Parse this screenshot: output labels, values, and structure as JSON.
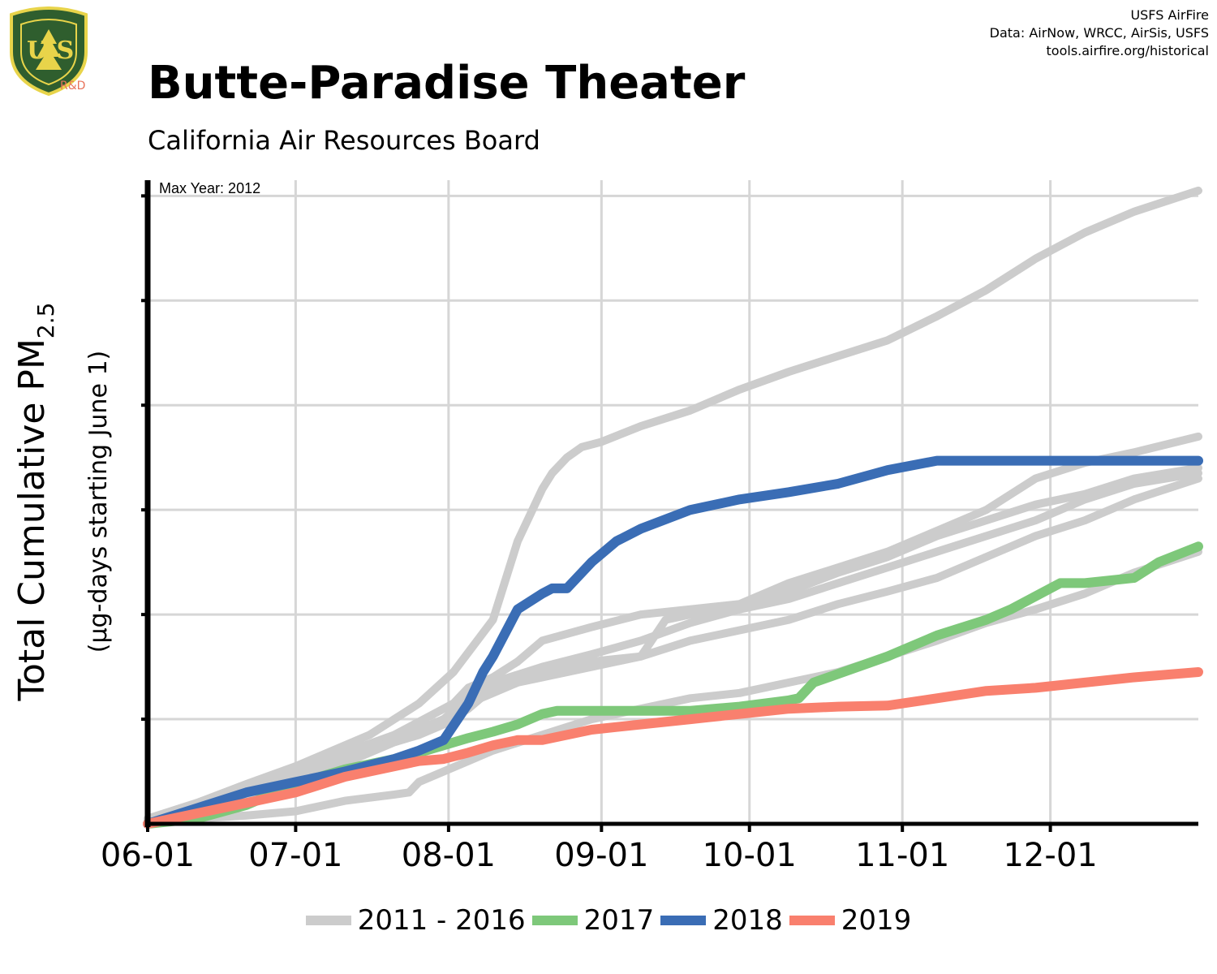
{
  "header": {
    "title": "Butte-Paradise Theater",
    "subtitle": "California Air Resources Board",
    "credits": [
      "USFS AirFire",
      "Data: AirNow, WRCC, AirSis, USFS",
      "tools.airfire.org/historical"
    ],
    "logo_text": "U S",
    "logo_rd": "R&D"
  },
  "chart_data": {
    "type": "line",
    "title": "Butte-Paradise Theater",
    "subtitle": "California Air Resources Board",
    "annotation": "Max Year: 2012",
    "ylabel": "Total Cumulative PM",
    "ylabel_sub": "2.5",
    "ylabel_secondary": "(µg-days starting June 1)",
    "x_ticks": [
      "06-01",
      "07-01",
      "08-01",
      "09-01",
      "10-01",
      "11-01",
      "12-01"
    ],
    "x_tick_day": [
      0,
      30,
      61,
      92,
      122,
      153,
      183
    ],
    "xlim": [
      0,
      213
    ],
    "ylim": [
      0,
      6.15
    ],
    "y_ticks": [
      1,
      2,
      3,
      4,
      5,
      6
    ],
    "grid": true,
    "legend_position": "bottom",
    "colors": {
      "2011 - 2016": "#cccccc",
      "2017": "#7ec87a",
      "2018": "#3a6db5",
      "2019": "#f9806e"
    },
    "legend": [
      {
        "label": "2011 - 2016",
        "color": "#cccccc"
      },
      {
        "label": "2017",
        "color": "#7ec87a"
      },
      {
        "label": "2018",
        "color": "#3a6db5"
      },
      {
        "label": "2019",
        "color": "#f9806e"
      }
    ],
    "series": [
      {
        "name": "2011 - 2016",
        "color": "#cccccc",
        "x": [
          0,
          10,
          20,
          30,
          45,
          55,
          62,
          70,
          75,
          80,
          82,
          85,
          88,
          92,
          100,
          110,
          120,
          130,
          140,
          150,
          160,
          170,
          180,
          190,
          200,
          213
        ],
        "y": [
          0.05,
          0.2,
          0.38,
          0.55,
          0.85,
          1.15,
          1.45,
          1.95,
          2.7,
          3.2,
          3.35,
          3.5,
          3.6,
          3.65,
          3.8,
          3.95,
          4.15,
          4.32,
          4.47,
          4.62,
          4.85,
          5.1,
          5.4,
          5.65,
          5.85,
          6.05
        ]
      },
      {
        "name": "2011 - 2016",
        "color": "#cccccc",
        "x": [
          0,
          10,
          20,
          30,
          40,
          50,
          60,
          62,
          65,
          70,
          75,
          80,
          90,
          100,
          110,
          120,
          130,
          140,
          150,
          160,
          170,
          180,
          190,
          200,
          213
        ],
        "y": [
          0.03,
          0.15,
          0.3,
          0.5,
          0.68,
          0.85,
          1.1,
          1.15,
          1.3,
          1.4,
          1.55,
          1.75,
          1.88,
          2.0,
          2.05,
          2.1,
          2.3,
          2.45,
          2.6,
          2.8,
          3.0,
          3.3,
          3.45,
          3.55,
          3.7
        ]
      },
      {
        "name": "2011 - 2016",
        "color": "#cccccc",
        "x": [
          0,
          10,
          20,
          30,
          45,
          55,
          60,
          65,
          70,
          80,
          90,
          100,
          110,
          120,
          130,
          140,
          150,
          160,
          170,
          180,
          190,
          200,
          213
        ],
        "y": [
          0.02,
          0.12,
          0.28,
          0.46,
          0.7,
          0.9,
          1.0,
          1.2,
          1.35,
          1.5,
          1.62,
          1.75,
          1.92,
          2.05,
          2.22,
          2.4,
          2.55,
          2.75,
          2.9,
          3.05,
          3.15,
          3.3,
          3.4
        ]
      },
      {
        "name": "2011 - 2016",
        "color": "#cccccc",
        "x": [
          0,
          10,
          20,
          30,
          40,
          50,
          55,
          60,
          65,
          70,
          80,
          90,
          100,
          105,
          110,
          120,
          130,
          140,
          150,
          160,
          170,
          180,
          190,
          200,
          213
        ],
        "y": [
          0.02,
          0.1,
          0.22,
          0.4,
          0.58,
          0.78,
          0.85,
          0.95,
          1.1,
          1.3,
          1.45,
          1.55,
          1.6,
          1.95,
          2.0,
          2.05,
          2.15,
          2.3,
          2.45,
          2.6,
          2.75,
          2.9,
          3.1,
          3.25,
          3.35
        ]
      },
      {
        "name": "2011 - 2016",
        "color": "#cccccc",
        "x": [
          0,
          5,
          10,
          20,
          30,
          40,
          50,
          53,
          55,
          60,
          65,
          70,
          80,
          90,
          100,
          110,
          120,
          130,
          140,
          150,
          160,
          170,
          180,
          190,
          200,
          213
        ],
        "y": [
          0.01,
          0.03,
          0.05,
          0.08,
          0.12,
          0.22,
          0.28,
          0.3,
          0.4,
          0.5,
          0.6,
          0.7,
          0.85,
          1.0,
          1.1,
          1.2,
          1.25,
          1.35,
          1.45,
          1.6,
          1.75,
          1.92,
          2.05,
          2.2,
          2.4,
          2.6
        ]
      },
      {
        "name": "2011 - 2016",
        "color": "#cccccc",
        "x": [
          0,
          10,
          20,
          30,
          40,
          50,
          60,
          65,
          70,
          75,
          80,
          90,
          100,
          110,
          120,
          130,
          140,
          150,
          160,
          170,
          180,
          190,
          200,
          213
        ],
        "y": [
          0.02,
          0.15,
          0.3,
          0.45,
          0.6,
          0.8,
          1.0,
          1.15,
          1.25,
          1.35,
          1.4,
          1.5,
          1.6,
          1.75,
          1.85,
          1.95,
          2.1,
          2.22,
          2.35,
          2.55,
          2.75,
          2.9,
          3.1,
          3.3
        ]
      },
      {
        "name": "2017",
        "color": "#7ec87a",
        "x": [
          0,
          10,
          20,
          30,
          40,
          50,
          55,
          60,
          65,
          70,
          75,
          80,
          83,
          90,
          100,
          110,
          120,
          130,
          132,
          135,
          150,
          160,
          170,
          175,
          185,
          190,
          200,
          205,
          213
        ],
        "y": [
          0.0,
          0.05,
          0.18,
          0.38,
          0.52,
          0.62,
          0.68,
          0.75,
          0.82,
          0.88,
          0.95,
          1.05,
          1.08,
          1.08,
          1.08,
          1.08,
          1.12,
          1.18,
          1.2,
          1.35,
          1.6,
          1.8,
          1.95,
          2.05,
          2.3,
          2.3,
          2.35,
          2.5,
          2.65
        ]
      },
      {
        "name": "2018",
        "color": "#3a6db5",
        "x": [
          0,
          10,
          20,
          30,
          35,
          40,
          50,
          55,
          60,
          65,
          68,
          70,
          75,
          80,
          82,
          85,
          90,
          95,
          100,
          110,
          120,
          130,
          140,
          150,
          160,
          170,
          180,
          190,
          200,
          213
        ],
        "y": [
          0.0,
          0.15,
          0.3,
          0.4,
          0.45,
          0.5,
          0.62,
          0.7,
          0.8,
          1.15,
          1.45,
          1.6,
          2.05,
          2.2,
          2.25,
          2.25,
          2.5,
          2.7,
          2.82,
          3.0,
          3.1,
          3.17,
          3.25,
          3.38,
          3.47,
          3.47,
          3.47,
          3.47,
          3.47,
          3.47
        ]
      },
      {
        "name": "2019",
        "color": "#f9806e",
        "x": [
          0,
          10,
          20,
          30,
          40,
          50,
          55,
          60,
          65,
          70,
          75,
          80,
          90,
          100,
          110,
          120,
          130,
          140,
          150,
          160,
          170,
          180,
          190,
          200,
          213
        ],
        "y": [
          0.0,
          0.1,
          0.2,
          0.3,
          0.45,
          0.55,
          0.6,
          0.62,
          0.68,
          0.75,
          0.8,
          0.8,
          0.9,
          0.95,
          1.0,
          1.05,
          1.1,
          1.12,
          1.13,
          1.2,
          1.27,
          1.3,
          1.35,
          1.4,
          1.45
        ]
      }
    ]
  }
}
